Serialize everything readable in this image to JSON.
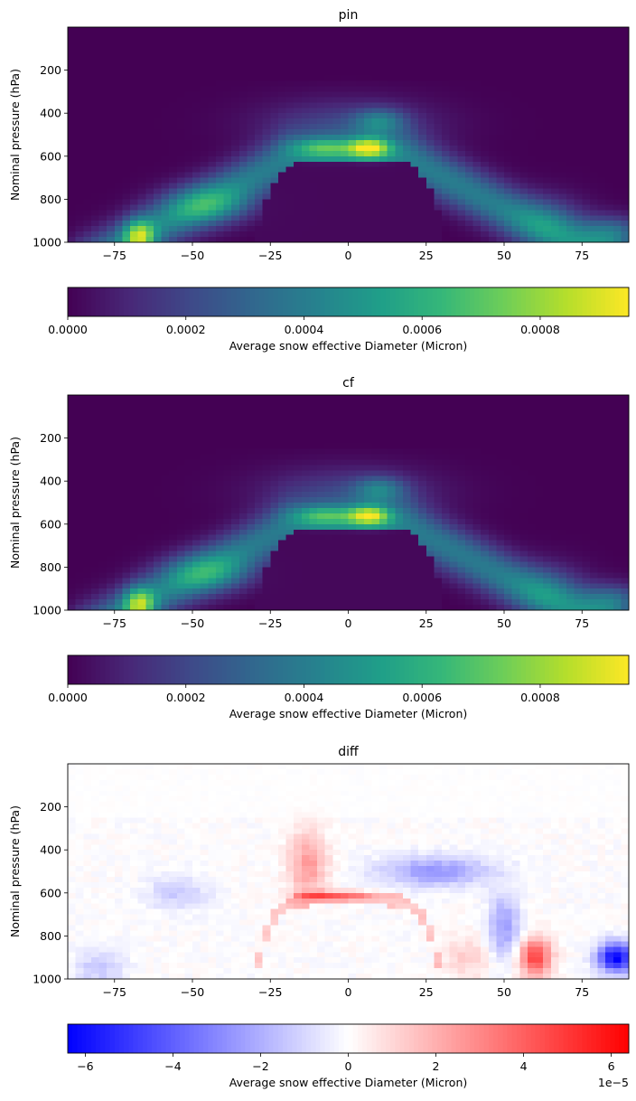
{
  "chart_data": [
    {
      "type": "heatmap",
      "title": "pin",
      "xlabel": "",
      "ylabel": "Nominal pressure (hPa)",
      "xlim": [
        -90,
        90
      ],
      "ylim": [
        1000,
        0
      ],
      "xticks": [
        -75,
        -50,
        -25,
        0,
        25,
        50,
        75
      ],
      "xtick_labels": [
        "−75",
        "−50",
        "−25",
        "0",
        "25",
        "50",
        "75"
      ],
      "yticks": [
        200,
        400,
        600,
        800,
        1000
      ],
      "ytick_labels": [
        "200",
        "400",
        "600",
        "800",
        "1000"
      ],
      "colormap": "viridis",
      "vmin": 0,
      "vmax": 0.00095,
      "colorbar": {
        "label": "Average snow effective Diameter (Micron)",
        "ticks": [
          0,
          0.0002,
          0.0004,
          0.0006,
          0.0008
        ],
        "tick_labels": [
          "0.0000",
          "0.0002",
          "0.0004",
          "0.0006",
          "0.0008"
        ],
        "offset_text": ""
      },
      "features": [
        {
          "lat": 7,
          "p": 570,
          "value": 0.00093
        },
        {
          "lat": -67,
          "p": 975,
          "value": 0.00092
        },
        {
          "lat": -45,
          "p": 830,
          "value": 0.00075
        },
        {
          "lat": 85,
          "p": 960,
          "value": 0.0007
        },
        {
          "lat": -10,
          "p": 560,
          "value": 0.0008
        }
      ]
    },
    {
      "type": "heatmap",
      "title": "cf",
      "xlabel": "",
      "ylabel": "Nominal pressure (hPa)",
      "xlim": [
        -90,
        90
      ],
      "ylim": [
        1000,
        0
      ],
      "xticks": [
        -75,
        -50,
        -25,
        0,
        25,
        50,
        75
      ],
      "xtick_labels": [
        "−75",
        "−50",
        "−25",
        "0",
        "25",
        "50",
        "75"
      ],
      "yticks": [
        200,
        400,
        600,
        800,
        1000
      ],
      "ytick_labels": [
        "200",
        "400",
        "600",
        "800",
        "1000"
      ],
      "colormap": "viridis",
      "vmin": 0,
      "vmax": 0.00095,
      "colorbar": {
        "label": "Average snow effective Diameter (Micron)",
        "ticks": [
          0,
          0.0002,
          0.0004,
          0.0006,
          0.0008
        ],
        "tick_labels": [
          "0.0000",
          "0.0002",
          "0.0004",
          "0.0006",
          "0.0008"
        ],
        "offset_text": ""
      },
      "features": [
        {
          "lat": 7,
          "p": 570,
          "value": 0.00092
        },
        {
          "lat": -67,
          "p": 975,
          "value": 0.0009
        },
        {
          "lat": -45,
          "p": 830,
          "value": 0.00072
        },
        {
          "lat": 85,
          "p": 960,
          "value": 0.00066
        },
        {
          "lat": -10,
          "p": 560,
          "value": 0.00078
        }
      ]
    },
    {
      "type": "heatmap",
      "title": "diff",
      "xlabel": "",
      "ylabel": "Nominal pressure (hPa)",
      "xlim": [
        -90,
        90
      ],
      "ylim": [
        1000,
        0
      ],
      "xticks": [
        -75,
        -50,
        -25,
        0,
        25,
        50,
        75
      ],
      "xtick_labels": [
        "−75",
        "−50",
        "−25",
        "0",
        "25",
        "50",
        "75"
      ],
      "yticks": [
        200,
        400,
        600,
        800,
        1000
      ],
      "ytick_labels": [
        "200",
        "400",
        "600",
        "800",
        "1000"
      ],
      "colormap": "bwr",
      "vmin": -6.4e-05,
      "vmax": 6.4e-05,
      "colorbar": {
        "label": "Average snow effective Diameter (Micron)",
        "ticks": [
          -6,
          -4,
          -2,
          0,
          2,
          4,
          6
        ],
        "tick_labels": [
          "−6",
          "−4",
          "−2",
          "0",
          "2",
          "4",
          "6"
        ],
        "offset_text": "1e−5"
      },
      "features": [
        {
          "lat": 85,
          "p": 900,
          "value": -6.4e-05
        },
        {
          "lat": 60,
          "p": 900,
          "value": 4.5e-05
        },
        {
          "lat": -5,
          "p": 610,
          "value": 4e-05
        },
        {
          "lat": 28,
          "p": 500,
          "value": -3e-05
        },
        {
          "lat": 50,
          "p": 760,
          "value": -2.5e-05
        }
      ]
    }
  ]
}
